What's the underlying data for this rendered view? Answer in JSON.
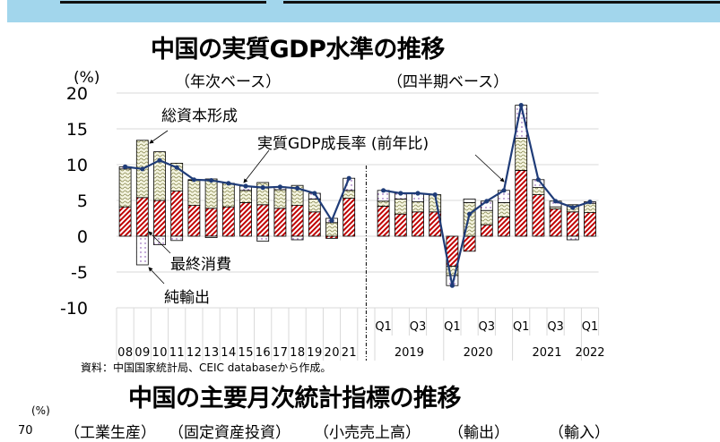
{
  "header": {
    "band_color": "#a2d6ec"
  },
  "chart_data": {
    "type": "bar",
    "stacked": true,
    "title": "中国の実質GDP水準の推移",
    "ylabel": "(%)",
    "ylim": [
      -10,
      20
    ],
    "yticks": [
      -10,
      -5,
      0,
      5,
      10,
      15,
      20
    ],
    "grid": true,
    "panel_labels": [
      "（年次ベース）",
      "（四半期ベース）"
    ],
    "annual_categories": [
      "08",
      "09",
      "10",
      "11",
      "12",
      "13",
      "14",
      "15",
      "16",
      "17",
      "18",
      "19",
      "20",
      "21"
    ],
    "quarterly_categories": [
      "2019Q1",
      "2019Q2",
      "2019Q3",
      "2019Q4",
      "2020Q1",
      "2020Q2",
      "2020Q3",
      "2020Q4",
      "2021Q1",
      "2021Q2",
      "2021Q3",
      "2021Q4",
      "2022Q1"
    ],
    "quarter_tick_labels": [
      "Q1",
      "Q3",
      "Q1",
      "Q3",
      "Q1",
      "Q3",
      "Q1"
    ],
    "year_labels": [
      "2019",
      "2020",
      "2021",
      "2022"
    ],
    "series": [
      {
        "name": "最終消費",
        "kind": "bar",
        "color": "#c00000",
        "annual": [
          4.1,
          5.4,
          5.0,
          6.3,
          4.3,
          3.9,
          4.1,
          4.7,
          4.4,
          3.9,
          4.3,
          3.4,
          -0.3,
          5.3
        ],
        "quarterly": [
          4.2,
          3.1,
          3.4,
          3.4,
          -4.2,
          -2.1,
          1.6,
          2.7,
          9.2,
          5.8,
          3.8,
          3.4,
          3.3
        ]
      },
      {
        "name": "総資本形成",
        "kind": "bar",
        "color": "#d9d9a0",
        "annual": [
          5.3,
          8.0,
          6.8,
          3.9,
          3.5,
          4.1,
          3.3,
          1.7,
          3.1,
          2.6,
          2.8,
          1.8,
          1.9,
          1.1
        ],
        "quarterly": [
          0.7,
          2.1,
          1.4,
          2.4,
          -1.3,
          4.7,
          2.0,
          2.0,
          4.5,
          1.0,
          0.3,
          1.0,
          1.3
        ]
      },
      {
        "name": "純輸出",
        "kind": "bar",
        "color": "#7030a0",
        "annual": [
          0.3,
          -4.0,
          -1.2,
          -0.6,
          0.1,
          -0.2,
          0.0,
          0.6,
          -0.7,
          0.4,
          -0.5,
          0.8,
          0.6,
          1.7
        ],
        "quarterly": [
          1.5,
          0.8,
          1.2,
          0.0,
          -1.4,
          0.5,
          1.3,
          1.7,
          4.6,
          1.1,
          0.8,
          -0.5,
          0.2
        ]
      },
      {
        "name": "実質GDP成長率 (前年比)",
        "kind": "line",
        "color": "#1f3c78",
        "annual": [
          9.7,
          9.4,
          10.6,
          9.6,
          7.9,
          7.8,
          7.4,
          7.0,
          6.8,
          6.9,
          6.7,
          6.0,
          2.2,
          8.1
        ],
        "quarterly": [
          6.4,
          6.0,
          6.0,
          5.8,
          -6.9,
          3.1,
          4.9,
          6.4,
          18.3,
          7.9,
          4.9,
          4.0,
          4.8
        ]
      }
    ],
    "source": "資料：中国国家統計局、CEIC databaseから作成。"
  },
  "second_chart": {
    "title": "中国の主要月次統計指標の推移",
    "ylabel": "(%)",
    "visible_ytick": "70",
    "panel_labels": [
      "（工業生産）",
      "（固定資産投資）",
      "（小売売上高）",
      "（輸出）",
      "（輸入）"
    ]
  }
}
